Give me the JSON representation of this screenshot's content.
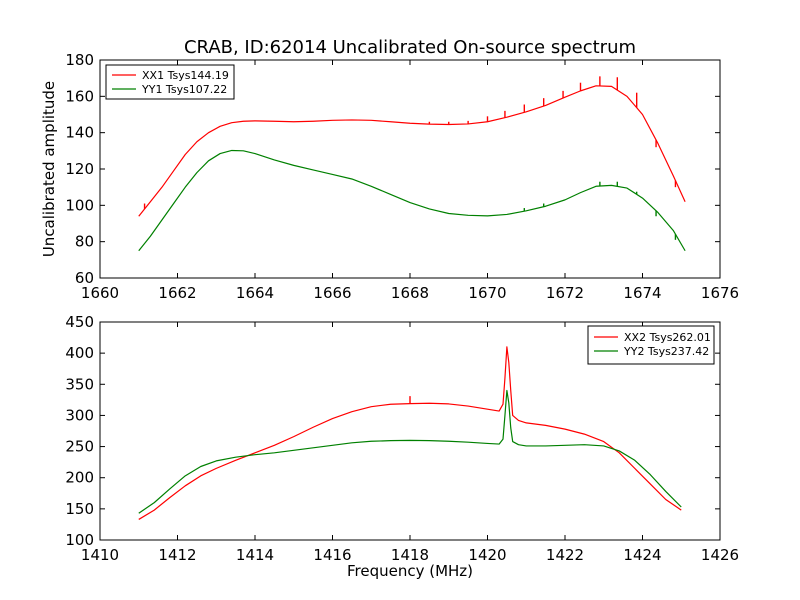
{
  "figure": {
    "title": "CRAB, ID:62014 Uncalibrated On-source spectrum",
    "xlabel": "Frequency (MHz)",
    "ylabel_top": "Uncalibrated amplitude"
  },
  "chart_data": [
    {
      "type": "line",
      "title": "CRAB, ID:62014 Uncalibrated On-source spectrum",
      "xlabel": "",
      "ylabel": "Uncalibrated amplitude",
      "xlim": [
        1660,
        1676
      ],
      "ylim": [
        60,
        180
      ],
      "xticks": [
        "1660",
        "1662",
        "1664",
        "1666",
        "1668",
        "1670",
        "1672",
        "1674",
        "1676"
      ],
      "yticks": [
        "60",
        "80",
        "100",
        "120",
        "140",
        "160",
        "180"
      ],
      "legend": "top-left",
      "grid": false,
      "series": [
        {
          "name": "XX1 Tsys144.19",
          "color": "#ff0000",
          "x": [
            1661.0,
            1661.3,
            1661.6,
            1661.9,
            1662.2,
            1662.5,
            1662.8,
            1663.1,
            1663.4,
            1663.7,
            1664.0,
            1664.5,
            1665.0,
            1665.5,
            1666.0,
            1666.5,
            1667.0,
            1667.5,
            1668.0,
            1668.5,
            1669.0,
            1669.5,
            1670.0,
            1670.5,
            1671.0,
            1671.5,
            1672.0,
            1672.4,
            1672.8,
            1673.2,
            1673.6,
            1674.0,
            1674.4,
            1674.8,
            1675.1
          ],
          "values": [
            94,
            102,
            110,
            119,
            128,
            135,
            140,
            143.5,
            145.5,
            146.3,
            146.5,
            146.3,
            146.0,
            146.3,
            146.8,
            147.0,
            146.8,
            146.0,
            145.2,
            144.7,
            144.5,
            144.8,
            146.0,
            148.5,
            151.5,
            155.0,
            159.5,
            163.0,
            165.8,
            165.5,
            160.0,
            150.0,
            134.0,
            116.0,
            102.0
          ]
        },
        {
          "name": "YY1 Tsys107.22",
          "color": "#008000",
          "x": [
            1661.0,
            1661.3,
            1661.6,
            1661.9,
            1662.2,
            1662.5,
            1662.8,
            1663.1,
            1663.4,
            1663.7,
            1664.0,
            1664.5,
            1665.0,
            1665.5,
            1666.0,
            1666.5,
            1667.0,
            1667.5,
            1668.0,
            1668.5,
            1669.0,
            1669.5,
            1670.0,
            1670.5,
            1671.0,
            1671.5,
            1672.0,
            1672.4,
            1672.8,
            1673.2,
            1673.6,
            1674.0,
            1674.4,
            1674.8,
            1675.1
          ],
          "values": [
            75,
            83,
            92,
            101,
            110,
            118,
            124.5,
            128.5,
            130.2,
            130.0,
            128.5,
            125.0,
            122.0,
            119.5,
            117.0,
            114.5,
            110.5,
            106.0,
            101.5,
            98.0,
            95.5,
            94.5,
            94.2,
            95.0,
            97.0,
            99.5,
            103.0,
            107.0,
            110.5,
            111.0,
            109.5,
            104.0,
            96.0,
            86.0,
            75.0
          ]
        }
      ],
      "spikes": [
        {
          "series": 0,
          "x": 1661.15,
          "to": 101
        },
        {
          "series": 0,
          "x": 1668.5,
          "to": 146
        },
        {
          "series": 0,
          "x": 1669.0,
          "to": 146
        },
        {
          "series": 0,
          "x": 1669.5,
          "to": 146.5
        },
        {
          "series": 0,
          "x": 1670.0,
          "to": 149
        },
        {
          "series": 0,
          "x": 1670.45,
          "to": 152
        },
        {
          "series": 0,
          "x": 1670.95,
          "to": 155.5
        },
        {
          "series": 0,
          "x": 1671.45,
          "to": 159
        },
        {
          "series": 0,
          "x": 1671.95,
          "to": 163
        },
        {
          "series": 0,
          "x": 1672.4,
          "to": 167.5
        },
        {
          "series": 0,
          "x": 1672.9,
          "to": 171
        },
        {
          "series": 0,
          "x": 1673.35,
          "to": 170.5
        },
        {
          "series": 0,
          "x": 1673.85,
          "to": 162
        },
        {
          "series": 0,
          "x": 1674.35,
          "to": 132
        },
        {
          "series": 0,
          "x": 1674.85,
          "to": 110
        },
        {
          "series": 1,
          "x": 1670.95,
          "to": 98.5
        },
        {
          "series": 1,
          "x": 1671.45,
          "to": 101
        },
        {
          "series": 1,
          "x": 1672.9,
          "to": 113
        },
        {
          "series": 1,
          "x": 1673.35,
          "to": 113
        },
        {
          "series": 1,
          "x": 1673.85,
          "to": 107.5
        },
        {
          "series": 1,
          "x": 1674.35,
          "to": 94
        },
        {
          "series": 1,
          "x": 1674.85,
          "to": 81
        }
      ]
    },
    {
      "type": "line",
      "title": "",
      "xlabel": "Frequency (MHz)",
      "ylabel": "",
      "xlim": [
        1410,
        1426
      ],
      "ylim": [
        100,
        450
      ],
      "xticks": [
        "1410",
        "1412",
        "1414",
        "1416",
        "1418",
        "1420",
        "1422",
        "1424",
        "1426"
      ],
      "yticks": [
        "100",
        "150",
        "200",
        "250",
        "300",
        "350",
        "400",
        "450"
      ],
      "legend": "top-right",
      "grid": false,
      "series": [
        {
          "name": "XX2 Tsys262.01",
          "color": "#ff0000",
          "x": [
            1411.0,
            1411.4,
            1411.8,
            1412.2,
            1412.6,
            1413.0,
            1413.5,
            1414.0,
            1414.5,
            1415.0,
            1415.5,
            1416.0,
            1416.5,
            1417.0,
            1417.5,
            1418.0,
            1418.5,
            1419.0,
            1419.5,
            1420.0,
            1420.3,
            1420.4,
            1420.45,
            1420.5,
            1420.55,
            1420.6,
            1420.65,
            1420.8,
            1421.0,
            1421.5,
            1422.0,
            1422.5,
            1423.0,
            1423.4,
            1423.8,
            1424.2,
            1424.6,
            1425.0
          ],
          "values": [
            133,
            148,
            168,
            187,
            203,
            215,
            228,
            240,
            252,
            266,
            281,
            295,
            306,
            314,
            318,
            319,
            319.5,
            318.5,
            315,
            310,
            307,
            318,
            360,
            410,
            385,
            340,
            300,
            292,
            288,
            284,
            278,
            270,
            258,
            240,
            215,
            190,
            165,
            148
          ]
        },
        {
          "name": "YY2 Tsys237.42",
          "color": "#008000",
          "x": [
            1411.0,
            1411.4,
            1411.8,
            1412.2,
            1412.6,
            1413.0,
            1413.5,
            1414.0,
            1414.5,
            1415.0,
            1415.5,
            1416.0,
            1416.5,
            1417.0,
            1417.5,
            1418.0,
            1418.5,
            1419.0,
            1419.5,
            1420.0,
            1420.3,
            1420.4,
            1420.45,
            1420.5,
            1420.55,
            1420.6,
            1420.65,
            1420.8,
            1421.0,
            1421.5,
            1422.0,
            1422.5,
            1423.0,
            1423.4,
            1423.8,
            1424.2,
            1424.6,
            1425.0
          ],
          "values": [
            143,
            160,
            182,
            203,
            218,
            227,
            233,
            237,
            240,
            244,
            248,
            252,
            256,
            258.5,
            259.5,
            260,
            259.5,
            258.5,
            257,
            255,
            254,
            262,
            300,
            340,
            320,
            280,
            258,
            253,
            251,
            251,
            252,
            253,
            251,
            243,
            228,
            205,
            178,
            153
          ]
        }
      ],
      "spikes": [
        {
          "series": 0,
          "x": 1418.0,
          "to": 331
        }
      ]
    }
  ]
}
